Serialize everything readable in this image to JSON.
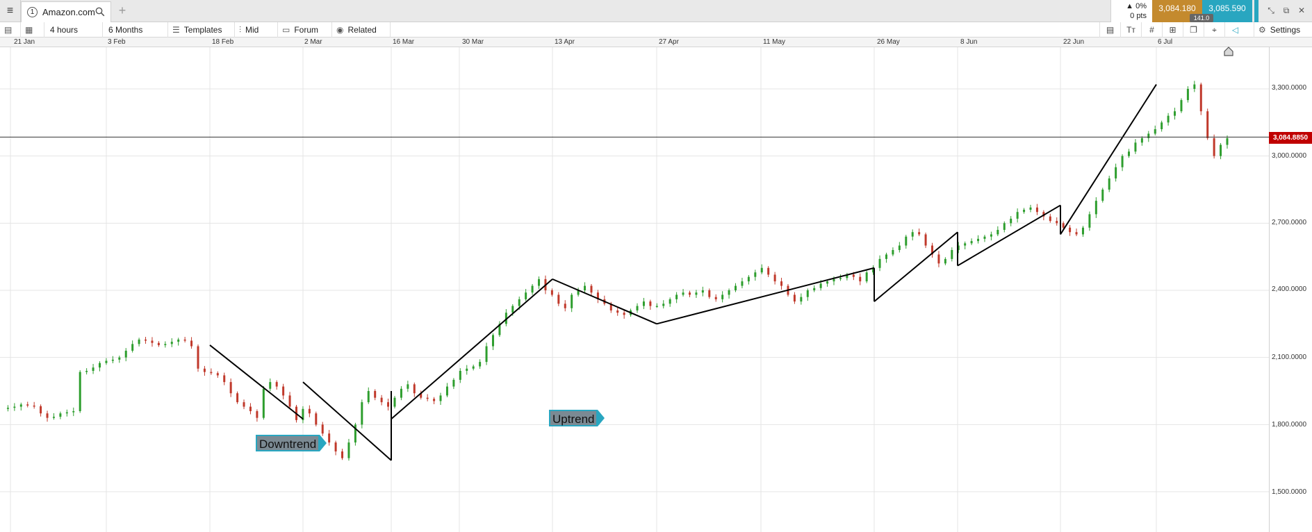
{
  "tab": {
    "number": "1",
    "title": "Amazon.com"
  },
  "quote": {
    "change_pct": "0%",
    "change_pts": "0 pts",
    "sell": "3,084.180",
    "buy": "3,085.590",
    "spread": "141.0"
  },
  "toolbar": {
    "interval": "4 hours",
    "range": "6 Months",
    "templates": "Templates",
    "price_type": "Mid",
    "forum": "Forum",
    "related": "Related",
    "settings": "Settings"
  },
  "dates": [
    "21 Jan",
    "3 Feb",
    "18 Feb",
    "2 Mar",
    "16 Mar",
    "30 Mar",
    "13 Apr",
    "27 Apr",
    "11 May",
    "26 May",
    "8 Jun",
    "22 Jun",
    "6 Jul"
  ],
  "y_ticks": [
    "3,300.0000",
    "3,000.0000",
    "2,700.0000",
    "2,400.0000",
    "2,100.0000",
    "1,800.0000",
    "1,500.0000"
  ],
  "current_price": "3,084.8850",
  "annotations": {
    "downtrend": "Downtrend",
    "uptrend": "Uptrend"
  },
  "colors": {
    "up": "#2e9e2e",
    "down": "#c0392b",
    "price_tag": "#c00000",
    "accent": "#29a6c0"
  },
  "chart_data": {
    "type": "candlestick",
    "title": "Amazon.com",
    "ylim": [
      1400,
      3540
    ],
    "y_tick_values": [
      1500,
      1800,
      2100,
      2400,
      2700,
      3000,
      3300
    ],
    "current_price": 3084.885,
    "trend_lines": [
      {
        "from": [
          "18 Feb",
          2155
        ],
        "to": [
          "2 Mar",
          1825
        ]
      },
      {
        "from": [
          "2 Mar",
          1990
        ],
        "to": [
          "16 Mar",
          1640
        ]
      },
      {
        "from": [
          "16 Mar",
          1640
        ],
        "to": [
          "16 Mar",
          1950
        ]
      },
      {
        "from": [
          "16 Mar",
          1950
        ],
        "to": [
          "16 Mar",
          1825
        ]
      },
      {
        "from": [
          "16 Mar",
          1825
        ],
        "to": [
          "13 Apr",
          2450
        ]
      },
      {
        "from": [
          "13 Apr",
          2450
        ],
        "to": [
          "27 Apr",
          2250
        ]
      },
      {
        "from": [
          "27 Apr",
          2250
        ],
        "to": [
          "26 May",
          2500
        ]
      },
      {
        "from": [
          "26 May",
          2500
        ],
        "to": [
          "26 May",
          2350
        ]
      },
      {
        "from": [
          "26 May",
          2350
        ],
        "to": [
          "8 Jun",
          2660
        ]
      },
      {
        "from": [
          "8 Jun",
          2660
        ],
        "to": [
          "8 Jun",
          2510
        ]
      },
      {
        "from": [
          "8 Jun",
          2510
        ],
        "to": [
          "22 Jun",
          2780
        ]
      },
      {
        "from": [
          "22 Jun",
          2780
        ],
        "to": [
          "22 Jun",
          2650
        ]
      },
      {
        "from": [
          "22 Jun",
          2650
        ],
        "to": [
          "6 Jul",
          3320
        ]
      }
    ],
    "price_path": [
      1870,
      1875,
      1880,
      1890,
      1885,
      1882,
      1850,
      1830,
      1835,
      1850,
      1855,
      1860,
      2035,
      2040,
      2055,
      2075,
      2085,
      2090,
      2100,
      2130,
      2160,
      2180,
      2175,
      2165,
      2155,
      2160,
      2170,
      2180,
      2175,
      2150,
      2050,
      2035,
      2030,
      2020,
      1990,
      1940,
      1900,
      1880,
      1860,
      1830,
      1960,
      1990,
      1970,
      1930,
      1880,
      1820,
      1870,
      1850,
      1800,
      1760,
      1720,
      1680,
      1650,
      1720,
      1800,
      1900,
      1950,
      1920,
      1900,
      1880,
      1920,
      1960,
      1980,
      1940,
      1920,
      1915,
      1905,
      1930,
      1970,
      2000,
      2040,
      2050,
      2060,
      2080,
      2150,
      2200,
      2250,
      2300,
      2330,
      2360,
      2390,
      2420,
      2450,
      2400,
      2380,
      2340,
      2320,
      2380,
      2400,
      2420,
      2390,
      2360,
      2340,
      2310,
      2300,
      2290,
      2310,
      2330,
      2350,
      2330,
      2330,
      2340,
      2360,
      2380,
      2390,
      2380,
      2390,
      2400,
      2370,
      2360,
      2380,
      2400,
      2420,
      2440,
      2460,
      2480,
      2500,
      2470,
      2440,
      2420,
      2380,
      2350,
      2370,
      2400,
      2410,
      2430,
      2440,
      2450,
      2455,
      2470,
      2460,
      2440,
      2480,
      2500,
      2540,
      2560,
      2580,
      2600,
      2640,
      2660,
      2650,
      2600,
      2560,
      2520,
      2540,
      2580,
      2600,
      2610,
      2620,
      2630,
      2640,
      2650,
      2670,
      2700,
      2720,
      2750,
      2760,
      2770,
      2750,
      2730,
      2710,
      2700,
      2680,
      2660,
      2650,
      2680,
      2740,
      2800,
      2850,
      2900,
      2950,
      3000,
      3020,
      3060,
      3080,
      3100,
      3120,
      3150,
      3180,
      3200,
      3250,
      3300,
      3320,
      3200,
      3080,
      3000,
      3050,
      3080
    ]
  }
}
